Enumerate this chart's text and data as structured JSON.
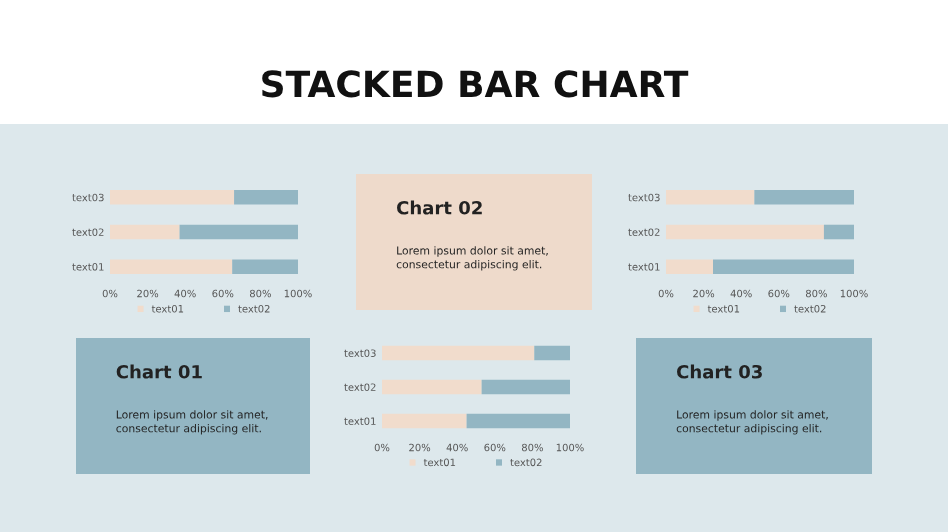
{
  "chart_data": [
    {
      "type": "other",
      "title": "STACKED BAR CHART"
    },
    {
      "type": "bar",
      "orientation": "horizontal",
      "stacked": true,
      "categories": [
        "text03",
        "text02",
        "text01"
      ],
      "xlim": [
        0,
        100
      ],
      "xticks": [
        {
          "value": 0,
          "label": "0%"
        },
        {
          "value": 20,
          "label": "20%"
        },
        {
          "value": 40,
          "label": "40%"
        },
        {
          "value": 60,
          "label": "60%"
        },
        {
          "value": 80,
          "label": "80%"
        },
        {
          "value": 100,
          "label": "100%"
        }
      ],
      "legend": "bottom",
      "grid": false,
      "series": [
        {
          "name": "text01",
          "color": "#f1dccc",
          "values": [
            66,
            37,
            65
          ]
        },
        {
          "name": "text02",
          "color": "#93b6c3",
          "values": [
            34,
            63,
            35
          ]
        }
      ]
    },
    {
      "type": "other",
      "title": "Chart 02",
      "annotations": [
        "Lorem ipsum dolor sit amet,\nconsectetur adipiscing elit."
      ],
      "color": "#eedacb"
    },
    {
      "type": "bar",
      "orientation": "horizontal",
      "stacked": true,
      "categories": [
        "text03",
        "text02",
        "text01"
      ],
      "xlim": [
        0,
        100
      ],
      "xticks": [
        {
          "value": 0,
          "label": "0%"
        },
        {
          "value": 20,
          "label": "20%"
        },
        {
          "value": 40,
          "label": "40%"
        },
        {
          "value": 60,
          "label": "60%"
        },
        {
          "value": 80,
          "label": "80%"
        },
        {
          "value": 100,
          "label": "100%"
        }
      ],
      "legend": "bottom",
      "grid": false,
      "series": [
        {
          "name": "text01",
          "color": "#f1dccc",
          "values": [
            47,
            84,
            25
          ]
        },
        {
          "name": "text02",
          "color": "#93b6c3",
          "values": [
            53,
            16,
            75
          ]
        }
      ]
    },
    {
      "type": "other",
      "title": "Chart 01",
      "annotations": [
        "Lorem ipsum dolor sit amet,\nconsectetur adipiscing elit."
      ],
      "color": "#93b6c3"
    },
    {
      "type": "bar",
      "orientation": "horizontal",
      "stacked": true,
      "categories": [
        "text03",
        "text02",
        "text01"
      ],
      "xlim": [
        0,
        100
      ],
      "xticks": [
        {
          "value": 0,
          "label": "0%"
        },
        {
          "value": 20,
          "label": "20%"
        },
        {
          "value": 40,
          "label": "40%"
        },
        {
          "value": 60,
          "label": "60%"
        },
        {
          "value": 80,
          "label": "80%"
        },
        {
          "value": 100,
          "label": "100%"
        }
      ],
      "legend": "bottom",
      "grid": false,
      "series": [
        {
          "name": "text01",
          "color": "#f1dccc",
          "values": [
            81,
            53,
            45
          ]
        },
        {
          "name": "text02",
          "color": "#93b6c3",
          "values": [
            19,
            47,
            55
          ]
        }
      ]
    },
    {
      "type": "other",
      "title": "Chart 03",
      "annotations": [
        "Lorem ipsum dolor sit amet,\nconsectetur adipiscing elit."
      ],
      "color": "#93b6c3"
    }
  ]
}
